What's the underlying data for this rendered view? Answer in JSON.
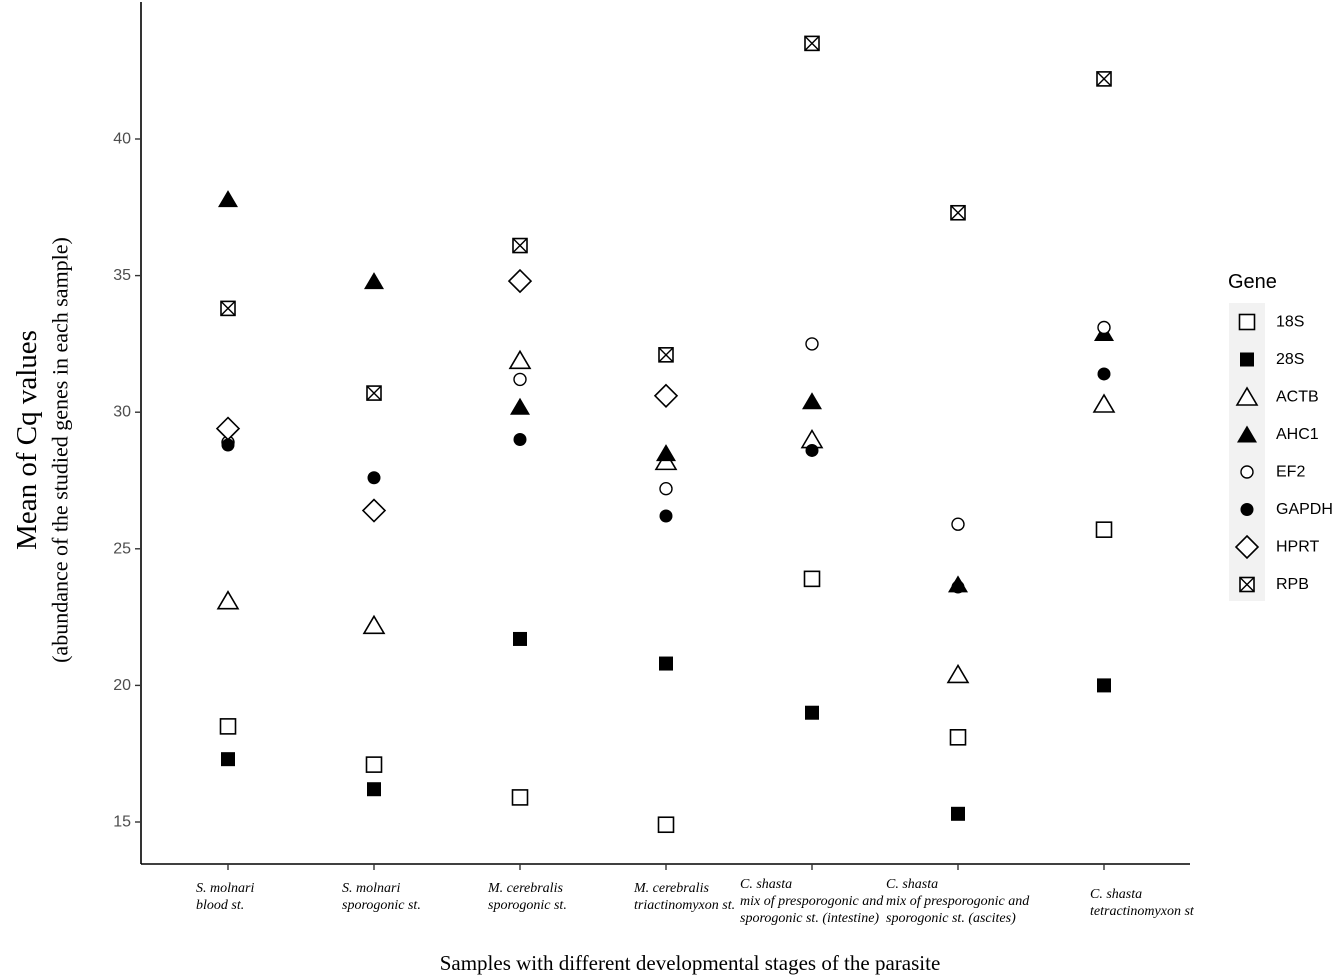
{
  "chart_data": {
    "type": "scatter",
    "xlabel": "Samples with different developmental stages of the parasite",
    "ylabel": "Mean of Cq values",
    "ylabel_sub": "(abundance of the studied genes in each sample)",
    "ylim": [
      13.5,
      45
    ],
    "yticks": [
      15,
      20,
      25,
      30,
      35,
      40
    ],
    "grid": false,
    "legend": {
      "title": "Gene",
      "position": "right"
    },
    "categories": [
      [
        "S. molnari",
        "blood st."
      ],
      [
        "S. molnari",
        "sporogonic st."
      ],
      [
        "M. cerebralis",
        "sporogonic st."
      ],
      [
        "M. cerebralis",
        "triactinomyxon st."
      ],
      [
        "C. shasta",
        "mix of presporogonic and",
        "sporogonic st. (intestine)"
      ],
      [
        "C. shasta",
        "mix of presporogonic and",
        "sporogonic st. (ascites)"
      ],
      [
        "C. shasta",
        "tetractinomyxon st"
      ]
    ],
    "series": [
      {
        "name": "18S",
        "marker": "open-square",
        "values": [
          18.5,
          17.1,
          15.9,
          14.9,
          23.9,
          18.1,
          25.7
        ]
      },
      {
        "name": "28S",
        "marker": "filled-square",
        "values": [
          17.3,
          16.2,
          21.7,
          20.8,
          19.0,
          15.3,
          20.0
        ]
      },
      {
        "name": "ACTB",
        "marker": "open-triangle",
        "values": [
          23.1,
          22.2,
          31.9,
          28.2,
          29.0,
          20.4,
          30.3
        ]
      },
      {
        "name": "AHC1",
        "marker": "filled-triangle",
        "values": [
          37.8,
          34.8,
          30.2,
          28.5,
          30.4,
          23.7,
          32.9
        ]
      },
      {
        "name": "EF2",
        "marker": "open-circle",
        "values": [
          28.9,
          null,
          31.2,
          27.2,
          32.5,
          25.9,
          33.1
        ]
      },
      {
        "name": "GAPDH",
        "marker": "filled-circle",
        "values": [
          28.8,
          27.6,
          29.0,
          26.2,
          28.6,
          23.6,
          31.4
        ]
      },
      {
        "name": "HPRT",
        "marker": "open-diamond",
        "values": [
          29.4,
          26.4,
          34.8,
          30.6,
          null,
          null,
          null
        ]
      },
      {
        "name": "RPB",
        "marker": "boxed-x",
        "values": [
          33.8,
          30.7,
          36.1,
          32.1,
          43.5,
          37.3,
          42.2
        ]
      }
    ]
  }
}
